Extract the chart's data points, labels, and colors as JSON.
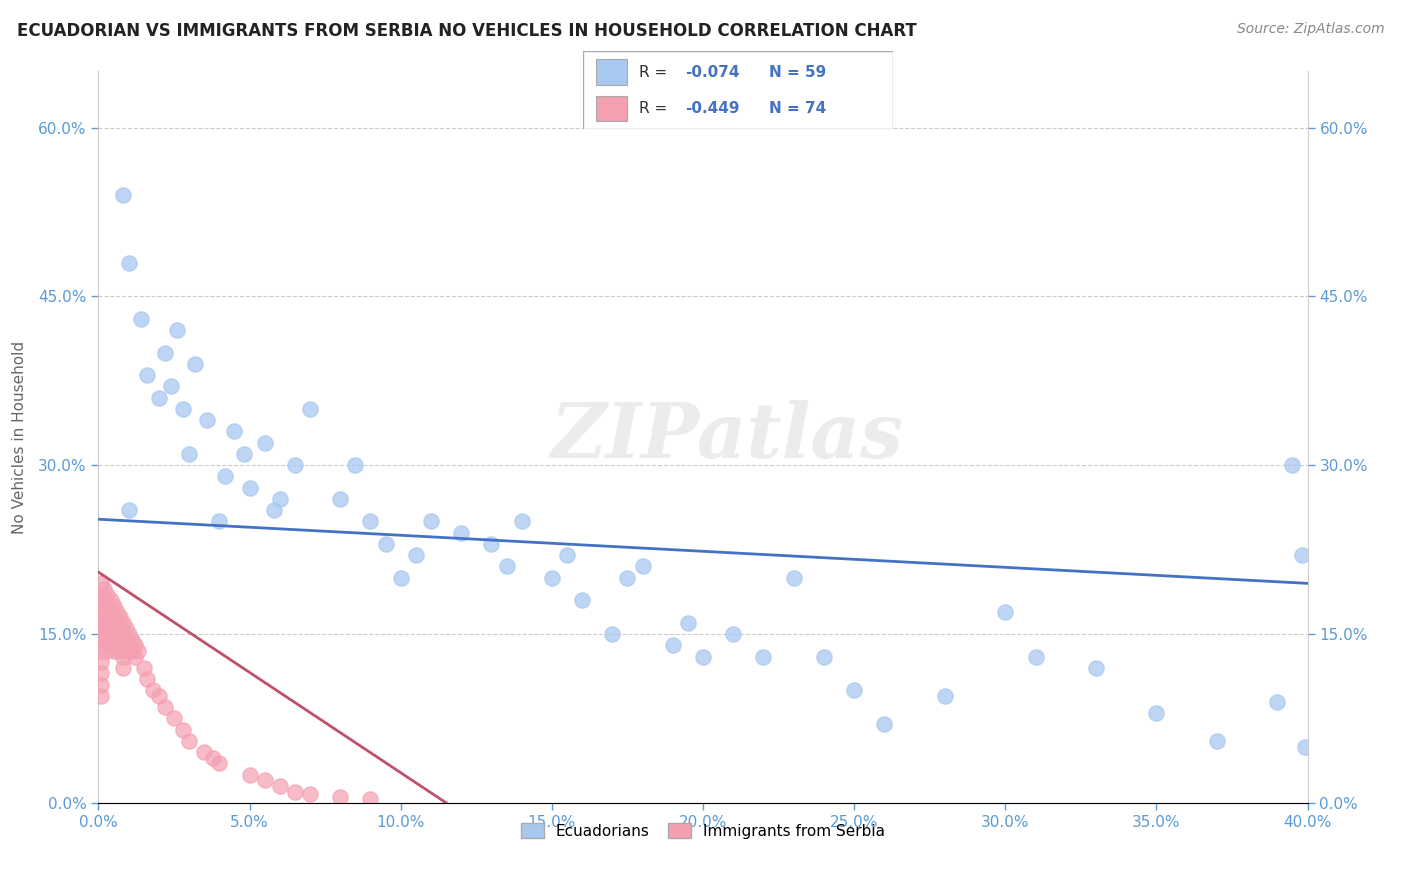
{
  "title": "ECUADORIAN VS IMMIGRANTS FROM SERBIA NO VEHICLES IN HOUSEHOLD CORRELATION CHART",
  "source": "Source: ZipAtlas.com",
  "ylabel": "No Vehicles in Household",
  "r_blue": -0.074,
  "n_blue": 59,
  "r_pink": -0.449,
  "n_pink": 74,
  "blue_color": "#A8C8F0",
  "pink_color": "#F4A0B0",
  "blue_line_color": "#4472C4",
  "pink_line_color": "#C0506A",
  "tick_color": "#5B9BD5",
  "xlim": [
    0.0,
    0.4
  ],
  "ylim": [
    0.0,
    0.65
  ],
  "blue_x": [
    0.008,
    0.01,
    0.01,
    0.014,
    0.016,
    0.02,
    0.022,
    0.024,
    0.026,
    0.028,
    0.03,
    0.032,
    0.036,
    0.04,
    0.042,
    0.045,
    0.048,
    0.05,
    0.055,
    0.058,
    0.06,
    0.065,
    0.07,
    0.08,
    0.085,
    0.09,
    0.095,
    0.1,
    0.105,
    0.11,
    0.12,
    0.13,
    0.135,
    0.14,
    0.15,
    0.155,
    0.16,
    0.17,
    0.175,
    0.18,
    0.19,
    0.195,
    0.2,
    0.21,
    0.22,
    0.23,
    0.24,
    0.25,
    0.26,
    0.28,
    0.3,
    0.31,
    0.33,
    0.35,
    0.37,
    0.39,
    0.395,
    0.398,
    0.399
  ],
  "blue_y": [
    0.54,
    0.48,
    0.26,
    0.43,
    0.38,
    0.36,
    0.4,
    0.37,
    0.42,
    0.35,
    0.31,
    0.39,
    0.34,
    0.25,
    0.29,
    0.33,
    0.31,
    0.28,
    0.32,
    0.26,
    0.27,
    0.3,
    0.35,
    0.27,
    0.3,
    0.25,
    0.23,
    0.2,
    0.22,
    0.25,
    0.24,
    0.23,
    0.21,
    0.25,
    0.2,
    0.22,
    0.18,
    0.15,
    0.2,
    0.21,
    0.14,
    0.16,
    0.13,
    0.15,
    0.13,
    0.2,
    0.13,
    0.1,
    0.07,
    0.095,
    0.17,
    0.13,
    0.12,
    0.08,
    0.055,
    0.09,
    0.3,
    0.22,
    0.05
  ],
  "pink_x": [
    0.001,
    0.001,
    0.001,
    0.001,
    0.001,
    0.001,
    0.001,
    0.001,
    0.001,
    0.001,
    0.001,
    0.002,
    0.002,
    0.002,
    0.002,
    0.002,
    0.002,
    0.003,
    0.003,
    0.003,
    0.003,
    0.003,
    0.003,
    0.004,
    0.004,
    0.004,
    0.004,
    0.004,
    0.005,
    0.005,
    0.005,
    0.005,
    0.005,
    0.006,
    0.006,
    0.006,
    0.006,
    0.007,
    0.007,
    0.007,
    0.007,
    0.008,
    0.008,
    0.008,
    0.008,
    0.008,
    0.009,
    0.009,
    0.009,
    0.01,
    0.01,
    0.011,
    0.011,
    0.012,
    0.012,
    0.013,
    0.015,
    0.016,
    0.018,
    0.02,
    0.022,
    0.025,
    0.028,
    0.03,
    0.035,
    0.038,
    0.04,
    0.05,
    0.055,
    0.06,
    0.065,
    0.07,
    0.08,
    0.09
  ],
  "pink_y": [
    0.195,
    0.185,
    0.175,
    0.165,
    0.155,
    0.145,
    0.135,
    0.125,
    0.115,
    0.105,
    0.095,
    0.19,
    0.18,
    0.17,
    0.16,
    0.15,
    0.14,
    0.185,
    0.175,
    0.165,
    0.155,
    0.145,
    0.135,
    0.18,
    0.17,
    0.16,
    0.15,
    0.14,
    0.175,
    0.165,
    0.155,
    0.145,
    0.135,
    0.17,
    0.16,
    0.15,
    0.14,
    0.165,
    0.155,
    0.145,
    0.135,
    0.16,
    0.15,
    0.14,
    0.13,
    0.12,
    0.155,
    0.145,
    0.135,
    0.15,
    0.14,
    0.145,
    0.135,
    0.14,
    0.13,
    0.135,
    0.12,
    0.11,
    0.1,
    0.095,
    0.085,
    0.075,
    0.065,
    0.055,
    0.045,
    0.04,
    0.035,
    0.025,
    0.02,
    0.015,
    0.01,
    0.008,
    0.005,
    0.003
  ],
  "blue_line_x": [
    0.0,
    0.4
  ],
  "blue_line_y": [
    0.252,
    0.195
  ],
  "pink_line_x": [
    0.0,
    0.115
  ],
  "pink_line_y": [
    0.205,
    0.0
  ],
  "watermark_text": "ZIPatlas",
  "background_color": "#FFFFFF",
  "grid_color": "#CCCCCC"
}
